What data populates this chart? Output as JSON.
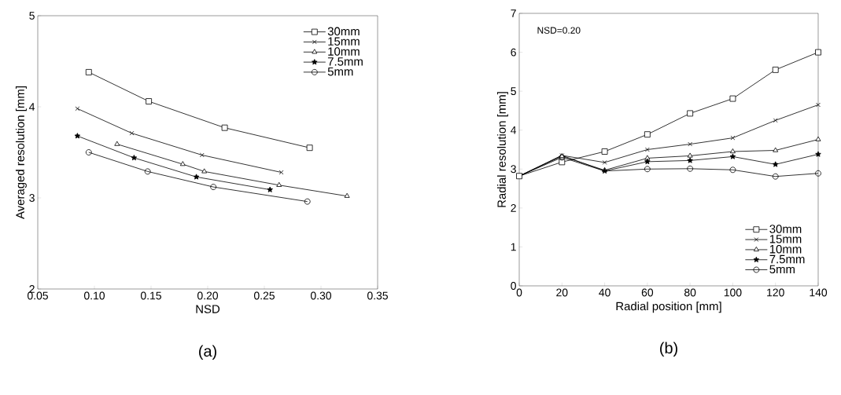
{
  "chart_data": [
    {
      "type": "line",
      "xlabel": "NSD",
      "ylabel": "Averaged resolution [mm]",
      "xlim": [
        0.05,
        0.35
      ],
      "ylim": [
        2,
        5
      ],
      "xticks": [
        {
          "value": 0.05,
          "label": "0.05"
        },
        {
          "value": 0.1,
          "label": "0.10"
        },
        {
          "value": 0.15,
          "label": "0.15"
        },
        {
          "value": 0.2,
          "label": "0.20"
        },
        {
          "value": 0.25,
          "label": "0.25"
        },
        {
          "value": 0.3,
          "label": "0.30"
        },
        {
          "value": 0.35,
          "label": "0.35"
        }
      ],
      "yticks": [
        2,
        3,
        4,
        5
      ],
      "grid": false,
      "legend": "top right",
      "line_style": "solid",
      "annotations": [
        "(a)"
      ],
      "series": [
        {
          "name": "30mm",
          "color": "#000000",
          "marker": "square",
          "x": [
            0.095,
            0.148,
            0.215,
            0.29
          ],
          "values": [
            4.38,
            4.06,
            3.77,
            3.55
          ]
        },
        {
          "name": "15mm",
          "color": "#000000",
          "marker": "cross",
          "x": [
            0.085,
            0.133,
            0.195,
            0.265
          ],
          "values": [
            3.98,
            3.71,
            3.47,
            3.28
          ]
        },
        {
          "name": "10mm",
          "color": "#000000",
          "marker": "triangle",
          "x": [
            0.12,
            0.178,
            0.197,
            0.263,
            0.323
          ],
          "values": [
            3.59,
            3.37,
            3.29,
            3.14,
            3.02
          ]
        },
        {
          "name": "7.5mm",
          "color": "#000000",
          "marker": "star",
          "x": [
            0.085,
            0.135,
            0.19,
            0.255
          ],
          "values": [
            3.68,
            3.44,
            3.23,
            3.09
          ]
        },
        {
          "name": "5mm",
          "color": "#000000",
          "marker": "circle",
          "x": [
            0.095,
            0.147,
            0.205,
            0.288
          ],
          "values": [
            3.5,
            3.29,
            3.12,
            2.96
          ]
        }
      ]
    },
    {
      "type": "line",
      "xlabel": "Radial position [mm]",
      "ylabel": "Radial resolution [mm]",
      "xlim": [
        0,
        140
      ],
      "ylim": [
        0,
        7
      ],
      "xticks": [
        0,
        20,
        40,
        60,
        80,
        100,
        120,
        140
      ],
      "yticks": [
        0,
        1,
        2,
        3,
        4,
        5,
        6,
        7
      ],
      "grid": false,
      "legend": "bottom right",
      "line_style": "solid",
      "annotations": [
        {
          "text": "NSD=0.20"
        },
        "(b)"
      ],
      "series": [
        {
          "name": "30mm",
          "color": "#000000",
          "marker": "square",
          "x": [
            0,
            20,
            40,
            60,
            80,
            100,
            120,
            140
          ],
          "values": [
            2.82,
            3.18,
            3.45,
            3.89,
            4.43,
            4.81,
            5.55,
            6.0
          ]
        },
        {
          "name": "15mm",
          "color": "#000000",
          "marker": "cross",
          "x": [
            0,
            20,
            40,
            60,
            80,
            100,
            120,
            140
          ],
          "values": [
            2.82,
            3.35,
            3.17,
            3.5,
            3.64,
            3.8,
            4.25,
            4.65
          ]
        },
        {
          "name": "10mm",
          "color": "#000000",
          "marker": "triangle",
          "x": [
            0,
            20,
            40,
            60,
            80,
            100,
            120,
            140
          ],
          "values": [
            2.82,
            3.33,
            2.97,
            3.28,
            3.34,
            3.45,
            3.48,
            3.76
          ]
        },
        {
          "name": "7.5mm",
          "color": "#000000",
          "marker": "star",
          "x": [
            0,
            20,
            40,
            60,
            80,
            100,
            120,
            140
          ],
          "values": [
            2.82,
            3.35,
            2.95,
            3.19,
            3.22,
            3.32,
            3.12,
            3.38
          ]
        },
        {
          "name": "5mm",
          "color": "#000000",
          "marker": "circle",
          "x": [
            0,
            20,
            40,
            60,
            80,
            100,
            120,
            140
          ],
          "values": [
            2.82,
            3.3,
            2.95,
            3.0,
            3.01,
            2.98,
            2.81,
            2.89
          ]
        }
      ]
    }
  ]
}
